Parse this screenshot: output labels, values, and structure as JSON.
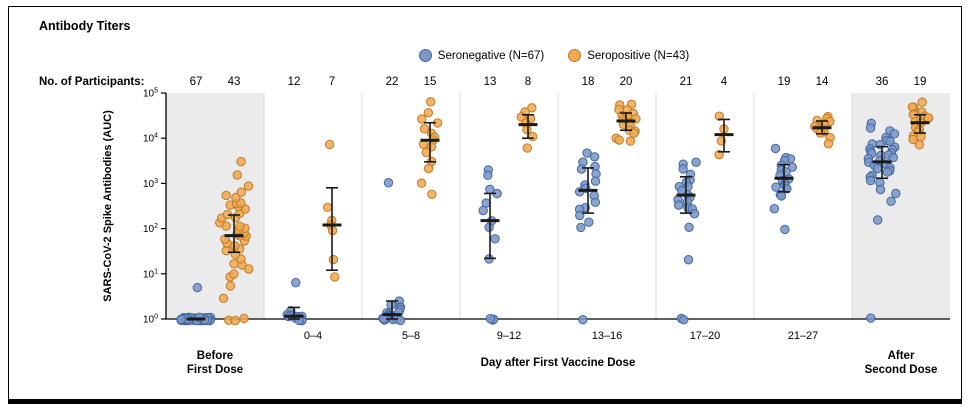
{
  "header": {
    "title": "Antibody Titers"
  },
  "legend": {
    "items": [
      {
        "label": "Seronegative (N=67)"
      },
      {
        "label": "Seropositive (N=43)"
      }
    ]
  },
  "participants_label": "No. of Participants:",
  "y_axis_label": "SARS-CoV-2 Spike Antibodies (AUC)",
  "x_axis": {
    "before_lines": [
      "Before",
      "First Dose"
    ],
    "middle_label": "Day after First Vaccine Dose",
    "after_lines": [
      "After",
      "Second Dose"
    ]
  },
  "chart_data": {
    "type": "scatter",
    "y_scale": "log10",
    "ylim": [
      1,
      100000
    ],
    "y_tick_exponents": [
      0,
      1,
      2,
      3,
      4,
      5
    ],
    "colors": {
      "series": [
        {
          "name": "seronegative",
          "fill": "#7b98c9",
          "stroke": "#44669e"
        },
        {
          "name": "seropositive",
          "fill": "#f2a952",
          "stroke": "#bb7c28"
        }
      ],
      "shade": "#ebebeb",
      "separator": "#d9d9d9",
      "axis": "#000000",
      "error_bar": "#1a1a1a"
    },
    "groups": [
      {
        "label": "Before First Dose",
        "day_label": "",
        "shaded": true,
        "series": [
          {
            "name": "seronegative",
            "n": 67,
            "median": 1,
            "lo": 1,
            "hi": 1,
            "values": [
              5,
              1,
              1,
              1,
              1,
              1,
              1,
              1,
              1,
              1,
              1,
              1,
              1,
              1,
              1,
              1,
              1,
              1,
              1,
              1,
              1,
              1,
              1,
              1,
              1,
              1,
              1,
              1,
              1,
              1,
              1,
              1,
              1,
              1,
              1,
              1,
              1,
              1,
              1,
              1,
              1,
              1,
              1,
              1,
              1,
              1,
              1,
              1,
              1,
              1,
              1,
              1,
              1,
              1,
              1,
              1,
              1,
              1,
              1,
              1,
              1,
              1,
              1,
              1,
              1,
              1,
              1
            ]
          },
          {
            "name": "seropositive",
            "n": 43,
            "median": 70,
            "lo": 30,
            "hi": 200,
            "values": [
              1,
              1,
              1,
              3,
              5,
              8,
              10,
              12,
              15,
              18,
              20,
              25,
              30,
              35,
              40,
              45,
              50,
              55,
              60,
              65,
              70,
              75,
              80,
              90,
              100,
              110,
              120,
              140,
              160,
              180,
              200,
              220,
              250,
              280,
              320,
              360,
              400,
              450,
              500,
              600,
              800,
              1500,
              3000
            ]
          }
        ]
      },
      {
        "label": "0–4",
        "day_label": "0–4",
        "shaded": false,
        "series": [
          {
            "name": "seronegative",
            "n": 12,
            "median": 1.15,
            "lo": 1,
            "hi": 1.8,
            "values": [
              6,
              1.5,
              1.3,
              1.2,
              1.2,
              1.1,
              1.1,
              1,
              1,
              1,
              1,
              1
            ]
          },
          {
            "name": "seropositive",
            "n": 7,
            "median": 120,
            "lo": 12,
            "hi": 800,
            "values": [
              7000,
              300,
              150,
              120,
              90,
              20,
              8
            ]
          }
        ]
      },
      {
        "label": "5–8",
        "day_label": "5–8",
        "shaded": false,
        "series": [
          {
            "name": "seronegative",
            "n": 22,
            "median": 1.25,
            "lo": 1,
            "hi": 2.5,
            "values": [
              1000,
              2.5,
              2,
              2,
              1.8,
              1.6,
              1.5,
              1.4,
              1.3,
              1.3,
              1.2,
              1.2,
              1.1,
              1.1,
              1.1,
              1,
              1,
              1,
              1,
              1,
              1,
              1
            ]
          },
          {
            "name": "seropositive",
            "n": 15,
            "median": 9000,
            "lo": 3000,
            "hi": 22000,
            "values": [
              60000,
              40000,
              25000,
              20000,
              15000,
              12000,
              10000,
              9000,
              8000,
              7000,
              5000,
              3000,
              2000,
              1000,
              600
            ]
          }
        ]
      },
      {
        "label": "9–12",
        "day_label": "9–12",
        "shaded": false,
        "series": [
          {
            "name": "seronegative",
            "n": 13,
            "median": 150,
            "lo": 22,
            "hi": 600,
            "values": [
              2000,
              1500,
              800,
              600,
              400,
              250,
              150,
              100,
              60,
              20,
              1,
              1,
              1
            ]
          },
          {
            "name": "seropositive",
            "n": 8,
            "median": 20000,
            "lo": 10000,
            "hi": 33000,
            "values": [
              50000,
              40000,
              30000,
              25000,
              20000,
              15000,
              10000,
              6000
            ]
          }
        ]
      },
      {
        "label": "13–16",
        "day_label": "13–16",
        "shaded": false,
        "series": [
          {
            "name": "seronegative",
            "n": 18,
            "median": 700,
            "lo": 220,
            "hi": 2200,
            "values": [
              5000,
              4000,
              3000,
              2500,
              2000,
              1500,
              1200,
              1000,
              800,
              700,
              500,
              400,
              300,
              250,
              200,
              150,
              100,
              1
            ]
          },
          {
            "name": "seropositive",
            "n": 20,
            "median": 24000,
            "lo": 15000,
            "hi": 36000,
            "values": [
              60000,
              50000,
              45000,
              40000,
              35000,
              32000,
              30000,
              28000,
              26000,
              25000,
              24000,
              22000,
              20000,
              18000,
              16000,
              14000,
              12000,
              10000,
              9000,
              8000
            ]
          }
        ]
      },
      {
        "label": "17–20",
        "day_label": "17–20",
        "shaded": false,
        "series": [
          {
            "name": "seronegative",
            "n": 21,
            "median": 550,
            "lo": 220,
            "hi": 1400,
            "values": [
              3000,
              2500,
              2000,
              1500,
              1200,
              1000,
              900,
              800,
              700,
              600,
              500,
              450,
              400,
              350,
              300,
              250,
              200,
              100,
              20,
              1,
              1
            ]
          },
          {
            "name": "seropositive",
            "n": 4,
            "median": 12000,
            "lo": 5000,
            "hi": 26000,
            "values": [
              30000,
              15000,
              9000,
              4000
            ]
          }
        ]
      },
      {
        "label": "21–27",
        "day_label": "21–27",
        "shaded": false,
        "series": [
          {
            "name": "seronegative",
            "n": 19,
            "median": 1300,
            "lo": 650,
            "hi": 2600,
            "values": [
              6000,
              4000,
              3500,
              3000,
              2500,
              2200,
              2000,
              1800,
              1500,
              1300,
              1200,
              1000,
              900,
              800,
              700,
              600,
              500,
              300,
              100
            ]
          },
          {
            "name": "seropositive",
            "n": 14,
            "median": 17000,
            "lo": 12500,
            "hi": 24000,
            "values": [
              30000,
              28000,
              25000,
              22000,
              20000,
              19000,
              18000,
              17000,
              16000,
              15000,
              14000,
              12000,
              10000,
              8000
            ]
          }
        ]
      },
      {
        "label": "After Second Dose",
        "day_label": "",
        "shaded": true,
        "series": [
          {
            "name": "seronegative",
            "n": 36,
            "median": 3000,
            "lo": 1300,
            "hi": 6500,
            "values": [
              20000,
              16000,
              14000,
              12000,
              10000,
              9000,
              8000,
              7500,
              7000,
              6500,
              6000,
              5500,
              5000,
              4800,
              4500,
              4200,
              4000,
              3800,
              3500,
              3200,
              3000,
              2800,
              2600,
              2400,
              2200,
              2000,
              1800,
              1600,
              1400,
              1200,
              1000,
              800,
              600,
              400,
              150,
              1
            ]
          },
          {
            "name": "seropositive",
            "n": 19,
            "median": 22000,
            "lo": 13000,
            "hi": 33000,
            "values": [
              60000,
              50000,
              45000,
              40000,
              35000,
              32000,
              30000,
              28000,
              26000,
              24000,
              22000,
              20000,
              18000,
              16000,
              14000,
              12000,
              10000,
              9000,
              7000
            ]
          }
        ]
      }
    ]
  }
}
